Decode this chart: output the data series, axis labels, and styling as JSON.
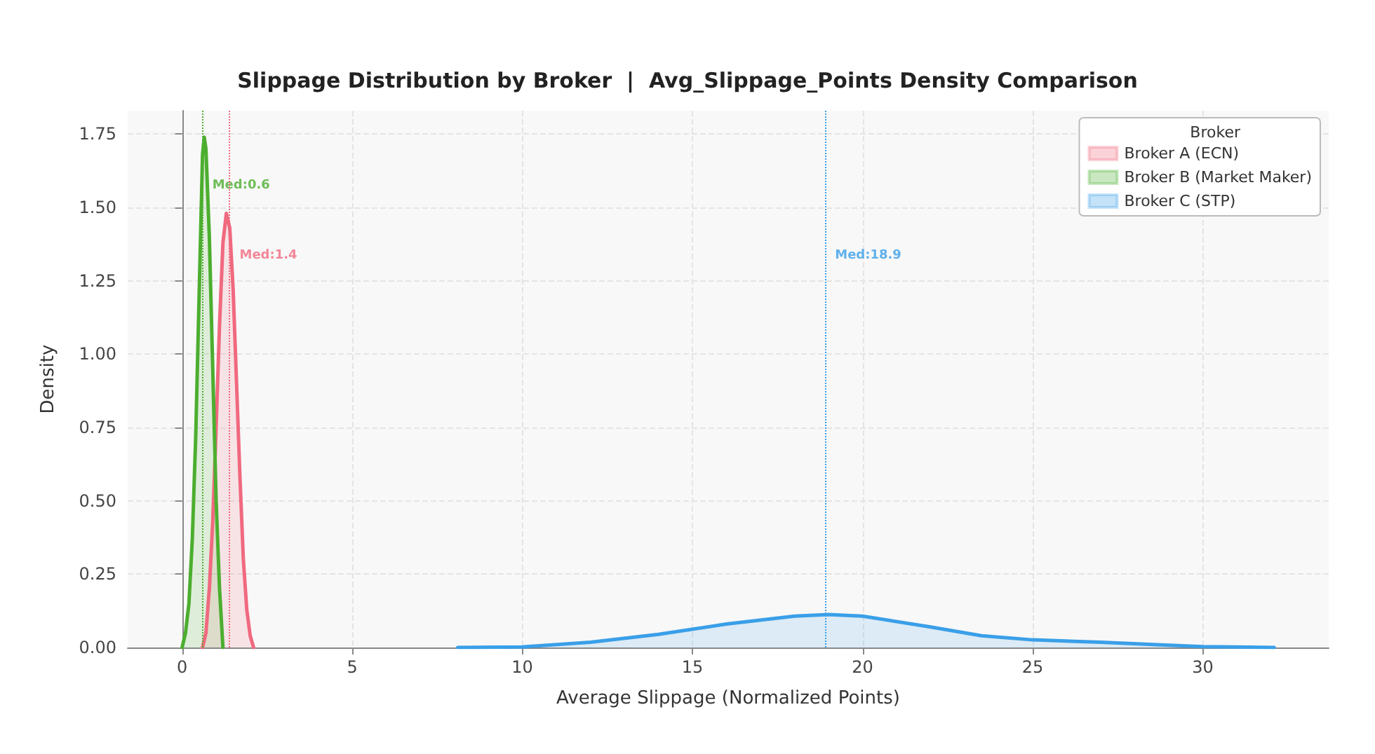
{
  "chart_data": {
    "type": "area",
    "title": "Slippage Distribution by Broker  |  Avg_Slippage_Points Density Comparison",
    "xlabel": "Average Slippage (Normalized Points)",
    "ylabel": "Density",
    "legend_title": "Broker",
    "legend": "top right",
    "grid": true,
    "line_style": "solid",
    "marker": "none",
    "xlim": [
      -1.6,
      33.7
    ],
    "ylim": [
      0,
      1.83
    ],
    "xticks": [
      0,
      5,
      10,
      15,
      20,
      25,
      30
    ],
    "yticks": [
      {
        "value": 0,
        "label": "0.00"
      },
      {
        "value": 0.25,
        "label": "0.25"
      },
      {
        "value": 0.5,
        "label": "0.50"
      },
      {
        "value": 0.75,
        "label": "0.75"
      },
      {
        "value": 1,
        "label": "1.00"
      },
      {
        "value": 1.25,
        "label": "1.25"
      },
      {
        "value": 1.5,
        "label": "1.50"
      },
      {
        "value": 1.75,
        "label": "1.75"
      }
    ],
    "series": [
      {
        "name": "Broker A (ECN)",
        "color": "#f0697f",
        "x": [
          0.6,
          0.7,
          0.8,
          0.9,
          1.0,
          1.1,
          1.2,
          1.3,
          1.4,
          1.5,
          1.6,
          1.7,
          1.8,
          1.9,
          2.0,
          2.1
        ],
        "values": [
          0,
          0.05,
          0.2,
          0.43,
          0.75,
          1.1,
          1.38,
          1.48,
          1.43,
          1.22,
          0.9,
          0.58,
          0.3,
          0.13,
          0.04,
          0
        ]
      },
      {
        "name": "Broker B (Market Maker)",
        "color": "#4cae2f",
        "x": [
          0,
          0.1,
          0.2,
          0.3,
          0.4,
          0.5,
          0.6,
          0.65,
          0.7,
          0.8,
          0.9,
          1.0,
          1.1,
          1.2
        ],
        "values": [
          0,
          0.05,
          0.15,
          0.37,
          0.72,
          1.2,
          1.68,
          1.74,
          1.7,
          1.4,
          0.95,
          0.5,
          0.2,
          0
        ]
      },
      {
        "name": "Broker C (STP)",
        "color": "#3a9fe8",
        "x": [
          8.1,
          10,
          12,
          14,
          16,
          18,
          19,
          20,
          22,
          23.5,
          25,
          27,
          29,
          30,
          32.1
        ],
        "values": [
          0,
          0.002,
          0.018,
          0.045,
          0.08,
          0.107,
          0.112,
          0.107,
          0.07,
          0.04,
          0.026,
          0.018,
          0.008,
          0.003,
          0
        ]
      }
    ],
    "ref_lines": [
      {
        "axis": "x",
        "value": 1.4,
        "label": "Med:1.4",
        "color": "#f0697f",
        "line_style": "dotted"
      },
      {
        "axis": "x",
        "value": 0.6,
        "label": "Med:0.6",
        "color": "#4cae2f",
        "line_style": "dotted"
      },
      {
        "axis": "x",
        "value": 18.9,
        "label": "Med:18.9",
        "color": "#3a9fe8",
        "line_style": "dotted"
      }
    ]
  }
}
